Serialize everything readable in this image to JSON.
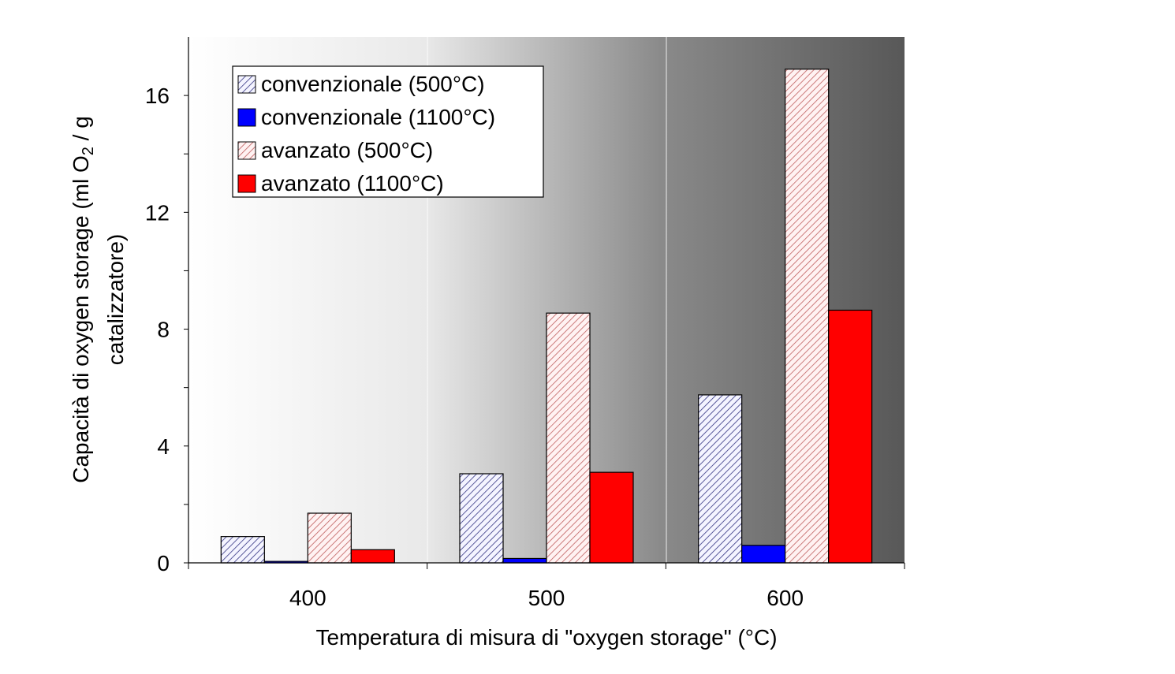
{
  "chart_data": {
    "type": "bar",
    "categories": [
      "400",
      "500",
      "600"
    ],
    "series": [
      {
        "name": "convenzionale (500°C)",
        "values": [
          0.9,
          3.05,
          5.75
        ],
        "color": "#f0f0ff",
        "pattern": "hatch-blue"
      },
      {
        "name": "convenzionale (1100°C)",
        "values": [
          0.05,
          0.15,
          0.6
        ],
        "color": "#0000ff",
        "pattern": "solid"
      },
      {
        "name": "avanzato (500°C)",
        "values": [
          1.7,
          8.55,
          16.9
        ],
        "color": "#ffe8e8",
        "pattern": "hatch-red"
      },
      {
        "name": "avanzato (1100°C)",
        "values": [
          0.45,
          3.1,
          8.65
        ],
        "color": "#ff0000",
        "pattern": "solid"
      }
    ],
    "xlabel": "Temperatura di misura di \"oxygen storage\" (°C)",
    "ylabel_line1": "Capacità di oxygen storage (ml O",
    "ylabel_sub": "2",
    "ylabel_line1_end": " / g",
    "ylabel_line2": "catalizzatore)",
    "ylim": [
      0,
      18
    ],
    "yticks": [
      0,
      4,
      8,
      12,
      16
    ],
    "ytick_labels": [
      "0",
      "4",
      "8",
      "12",
      "16"
    ],
    "grid": false,
    "background": "gradient white to dark gray",
    "legend": {
      "position": "top-left"
    }
  }
}
